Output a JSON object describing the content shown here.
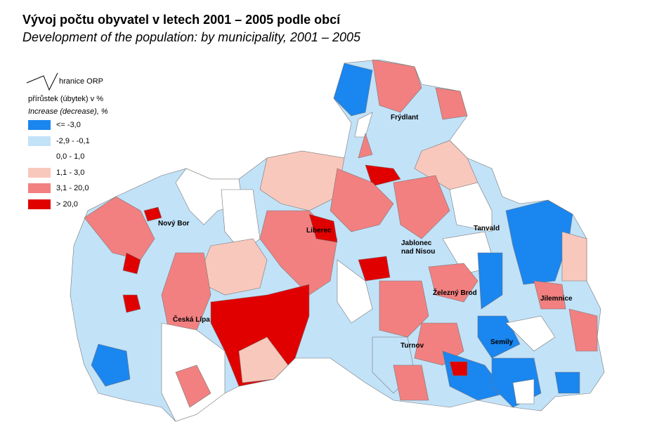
{
  "title": "Vývoj počtu obyvatel v letech 2001 – 2005 podle obcí",
  "subtitle": "Development of the population: by municipality, 2001 – 2005",
  "legend": {
    "boundary_label": "hranice ORP",
    "heading_cz": "přírůstek (úbytek) v %",
    "heading_en": "Increase (decrease), %",
    "classes": [
      {
        "label": "<=  -3,0",
        "color": "#1a86f0"
      },
      {
        "label": "-2,9 - -0,1",
        "color": "#c2e2f8"
      },
      {
        "label": "0,0 - 1,0",
        "color": "#ffffff"
      },
      {
        "label": "1,1 - 3,0",
        "color": "#f9c8bc"
      },
      {
        "label": "3,1 - 20,0",
        "color": "#f28080"
      },
      {
        "label": "> 20,0",
        "color": "#e00000"
      }
    ]
  },
  "towns": [
    "Frýdlant",
    "Nový Bor",
    "Liberec",
    "Tanvald",
    "Jablonec",
    "nad Nisou",
    "Železný Brod",
    "Jilemnice",
    "Česká Lípa",
    "Semily",
    "Turnov"
  ]
}
